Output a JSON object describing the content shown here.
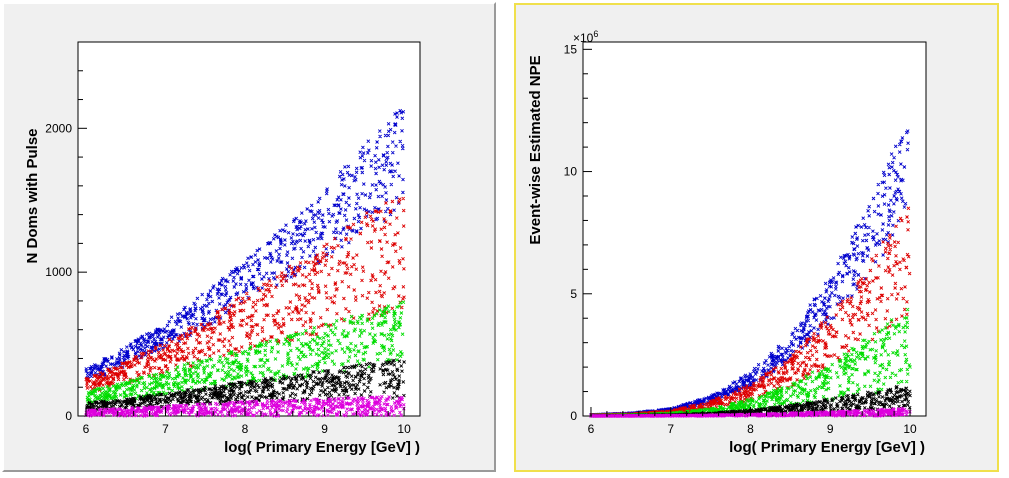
{
  "chart_data": [
    {
      "type": "scatter",
      "xlabel": "log( Primary Energy [GeV] )",
      "ylabel": "N Doms with Pulse",
      "xlim": [
        5.9,
        10.2
      ],
      "ylim": [
        0,
        2600
      ],
      "x_ticks": [
        "6",
        "7",
        "8",
        "9",
        "10"
      ],
      "x_tick_values": [
        6,
        7,
        8,
        9,
        10
      ],
      "y_ticks": [
        "0",
        "1000",
        "2000"
      ],
      "y_tick_values": [
        0,
        1000,
        2000
      ],
      "grid": false,
      "series": [
        {
          "color": "#0000cc",
          "x": [
            6.0,
            6.5,
            7.0,
            7.5,
            8.0,
            8.5,
            9.0,
            9.5,
            10.0
          ],
          "y": [
            330,
            480,
            660,
            860,
            1080,
            1330,
            1580,
            1880,
            2200
          ]
        },
        {
          "color": "#dd0000",
          "x": [
            6.0,
            6.5,
            7.0,
            7.5,
            8.0,
            8.5,
            9.0,
            9.5,
            10.0
          ],
          "y": [
            260,
            380,
            520,
            680,
            850,
            1020,
            1200,
            1400,
            1600
          ]
        },
        {
          "color": "#00dd00",
          "x": [
            6.0,
            6.5,
            7.0,
            7.5,
            8.0,
            8.5,
            9.0,
            9.5,
            10.0
          ],
          "y": [
            170,
            240,
            320,
            400,
            480,
            560,
            640,
            720,
            800
          ]
        },
        {
          "color": "#000000",
          "x": [
            6.0,
            6.5,
            7.0,
            7.5,
            8.0,
            8.5,
            9.0,
            9.5,
            10.0
          ],
          "y": [
            90,
            120,
            160,
            200,
            240,
            280,
            320,
            360,
            400
          ]
        },
        {
          "color": "#dd00dd",
          "x": [
            6.0,
            6.5,
            7.0,
            7.5,
            8.0,
            8.5,
            9.0,
            9.5,
            10.0
          ],
          "y": [
            40,
            55,
            70,
            85,
            100,
            110,
            120,
            130,
            140
          ]
        }
      ]
    },
    {
      "type": "scatter",
      "xlabel": "log( Primary Energy [GeV] )",
      "ylabel": "Event-wise Estimated NPE",
      "y_multiplier": "×10",
      "y_multiplier_exp": "6",
      "xlim": [
        5.9,
        10.2
      ],
      "ylim": [
        0,
        15.3
      ],
      "x_ticks": [
        "6",
        "7",
        "8",
        "9",
        "10"
      ],
      "x_tick_values": [
        6,
        7,
        8,
        9,
        10
      ],
      "y_ticks": [
        "0",
        "5",
        "10",
        "15"
      ],
      "y_tick_values": [
        0,
        5,
        10,
        15
      ],
      "grid": false,
      "series": [
        {
          "color": "#0000cc",
          "x": [
            6.0,
            6.5,
            7.0,
            7.5,
            8.0,
            8.5,
            9.0,
            9.5,
            10.0
          ],
          "y": [
            0.05,
            0.12,
            0.3,
            0.8,
            1.8,
            3.3,
            5.8,
            8.8,
            12.5
          ]
        },
        {
          "color": "#dd0000",
          "x": [
            6.0,
            6.5,
            7.0,
            7.5,
            8.0,
            8.5,
            9.0,
            9.5,
            10.0
          ],
          "y": [
            0.04,
            0.09,
            0.22,
            0.6,
            1.3,
            2.4,
            4.2,
            6.4,
            9.0
          ]
        },
        {
          "color": "#00dd00",
          "x": [
            6.0,
            6.5,
            7.0,
            7.5,
            8.0,
            8.5,
            9.0,
            9.5,
            10.0
          ],
          "y": [
            0.02,
            0.05,
            0.12,
            0.3,
            0.7,
            1.3,
            2.2,
            3.3,
            4.6
          ]
        },
        {
          "color": "#000000",
          "x": [
            6.0,
            6.5,
            7.0,
            7.5,
            8.0,
            8.5,
            9.0,
            9.5,
            10.0
          ],
          "y": [
            0.01,
            0.02,
            0.05,
            0.12,
            0.25,
            0.45,
            0.7,
            1.0,
            1.3
          ]
        },
        {
          "color": "#dd00dd",
          "x": [
            6.0,
            6.5,
            7.0,
            7.5,
            8.0,
            8.5,
            9.0,
            9.5,
            10.0
          ],
          "y": [
            0.005,
            0.01,
            0.02,
            0.04,
            0.07,
            0.12,
            0.18,
            0.25,
            0.32
          ]
        }
      ]
    }
  ]
}
